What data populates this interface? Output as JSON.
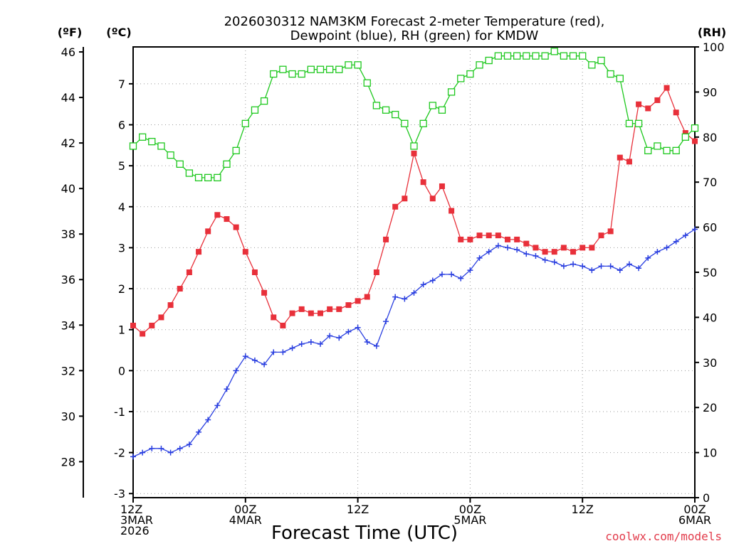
{
  "chart_data": {
    "type": "line",
    "title_line1": "2026030312 NAM3KM Forecast 2-meter Temperature (red),",
    "title_line2": "Dewpoint (blue), RH (green) for KMDW",
    "xlabel": "Forecast Time (UTC)",
    "credit": "coolwx.com/models",
    "units": {
      "fahrenheit": "(ºF)",
      "celsius": "(ºC)",
      "rh": "(RH)"
    },
    "hours_range": [
      0,
      60
    ],
    "celsius_range": [
      -3.1,
      7.9
    ],
    "rh_range": [
      0,
      100
    ],
    "x_ticks": [
      {
        "hour": 0,
        "lines": [
          "12Z",
          "3MAR",
          "2026"
        ]
      },
      {
        "hour": 12,
        "lines": [
          "00Z",
          "4MAR"
        ]
      },
      {
        "hour": 24,
        "lines": [
          "12Z"
        ]
      },
      {
        "hour": 36,
        "lines": [
          "00Z",
          "5MAR"
        ]
      },
      {
        "hour": 48,
        "lines": [
          "12Z"
        ]
      },
      {
        "hour": 60,
        "lines": [
          "00Z",
          "6MAR"
        ]
      }
    ],
    "celsius_ticks": [
      -3,
      -2,
      -1,
      0,
      1,
      2,
      3,
      4,
      5,
      6,
      7
    ],
    "fahrenheit_ticks": [
      28,
      30,
      32,
      34,
      36,
      38,
      40,
      42,
      44,
      46
    ],
    "rh_ticks": [
      0,
      10,
      20,
      30,
      40,
      50,
      60,
      70,
      80,
      90,
      100
    ],
    "series": [
      {
        "name": "Temperature",
        "unit": "C",
        "color": "#e8303a",
        "marker": "filled-square",
        "hours": [
          0,
          1,
          2,
          3,
          4,
          5,
          6,
          7,
          8,
          9,
          10,
          11,
          12,
          13,
          14,
          15,
          16,
          17,
          18,
          19,
          20,
          21,
          22,
          23,
          24,
          25,
          26,
          27,
          28,
          29,
          30,
          31,
          32,
          33,
          34,
          35,
          36,
          37,
          38,
          39,
          40,
          41,
          42,
          43,
          44,
          45,
          46,
          47,
          48,
          49,
          50,
          51,
          52,
          53,
          54,
          55,
          56,
          57,
          58,
          59,
          60
        ],
        "values": [
          1.1,
          0.9,
          1.1,
          1.3,
          1.6,
          2.0,
          2.4,
          2.9,
          3.4,
          3.8,
          3.7,
          3.5,
          2.9,
          2.4,
          1.9,
          1.3,
          1.1,
          1.4,
          1.5,
          1.4,
          1.4,
          1.5,
          1.5,
          1.6,
          1.7,
          1.8,
          2.4,
          3.2,
          4.0,
          4.2,
          5.3,
          4.6,
          4.2,
          4.5,
          3.9,
          3.2,
          3.2,
          3.3,
          3.3,
          3.3,
          3.2,
          3.2,
          3.1,
          3.0,
          2.9,
          2.9,
          3.0,
          2.9,
          3.0,
          3.0,
          3.3,
          3.4,
          5.2,
          5.1,
          6.5,
          6.4,
          6.6,
          6.9,
          6.3,
          5.8,
          5.6
        ]
      },
      {
        "name": "Dewpoint",
        "unit": "C",
        "color": "#2a3fe0",
        "marker": "plus",
        "hours": [
          0,
          1,
          2,
          3,
          4,
          5,
          6,
          7,
          8,
          9,
          10,
          11,
          12,
          13,
          14,
          15,
          16,
          17,
          18,
          19,
          20,
          21,
          22,
          23,
          24,
          25,
          26,
          27,
          28,
          29,
          30,
          31,
          32,
          33,
          34,
          35,
          36,
          37,
          38,
          39,
          40,
          41,
          42,
          43,
          44,
          45,
          46,
          47,
          48,
          49,
          50,
          51,
          52,
          53,
          54,
          55,
          56,
          57,
          58,
          59,
          60
        ],
        "values": [
          -2.1,
          -2.0,
          -1.9,
          -1.9,
          -2.0,
          -1.9,
          -1.8,
          -1.5,
          -1.2,
          -0.85,
          -0.45,
          0.0,
          0.35,
          0.25,
          0.15,
          0.45,
          0.45,
          0.55,
          0.65,
          0.7,
          0.65,
          0.85,
          0.8,
          0.95,
          1.05,
          0.7,
          0.6,
          1.2,
          1.8,
          1.75,
          1.9,
          2.1,
          2.2,
          2.35,
          2.35,
          2.25,
          2.45,
          2.75,
          2.9,
          3.05,
          3.0,
          2.95,
          2.85,
          2.8,
          2.7,
          2.65,
          2.55,
          2.6,
          2.55,
          2.45,
          2.55,
          2.55,
          2.45,
          2.6,
          2.5,
          2.75,
          2.9,
          3.0,
          3.15,
          3.3,
          3.45
        ]
      },
      {
        "name": "Relative Humidity",
        "unit": "%",
        "color": "#1ec81e",
        "marker": "hollow-square",
        "hours": [
          0,
          1,
          2,
          3,
          4,
          5,
          6,
          7,
          8,
          9,
          10,
          11,
          12,
          13,
          14,
          15,
          16,
          17,
          18,
          19,
          20,
          21,
          22,
          23,
          24,
          25,
          26,
          27,
          28,
          29,
          30,
          31,
          32,
          33,
          34,
          35,
          36,
          37,
          38,
          39,
          40,
          41,
          42,
          43,
          44,
          45,
          46,
          47,
          48,
          49,
          50,
          51,
          52,
          53,
          54,
          55,
          56,
          57,
          58,
          59,
          60
        ],
        "values": [
          78,
          80,
          79,
          78,
          76,
          74,
          72,
          71,
          71,
          71,
          74,
          77,
          83,
          86,
          88,
          94,
          95,
          94,
          94,
          95,
          95,
          95,
          95,
          96,
          96,
          92,
          87,
          86,
          85,
          83,
          78,
          83,
          87,
          86,
          90,
          93,
          94,
          96,
          97,
          98,
          98,
          98,
          98,
          98,
          98,
          99,
          98,
          98,
          98,
          96,
          97,
          94,
          93,
          83,
          83,
          77,
          78,
          77,
          77,
          80,
          82
        ]
      }
    ]
  }
}
